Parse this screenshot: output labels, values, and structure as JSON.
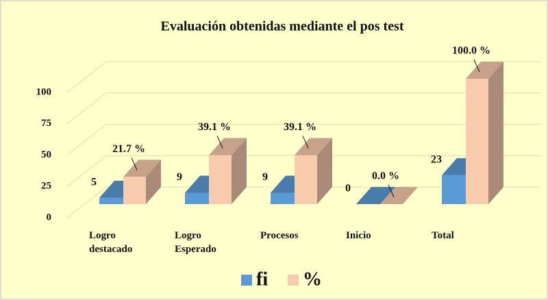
{
  "chart_data": {
    "type": "bar3d",
    "title": "Evaluación obtenidas mediante el pos  test",
    "categories": [
      "Logro destacado",
      "Logro Esperado",
      "Procesos",
      "Inicio",
      "Total"
    ],
    "series": [
      {
        "name": "fi",
        "color": "#5b9bd5",
        "values": [
          5,
          9,
          9,
          0,
          23
        ]
      },
      {
        "name": "%",
        "color": "#f8cbad",
        "values": [
          21.7,
          39.1,
          39.1,
          0.0,
          100.0
        ],
        "value_labels": [
          "21.7 %",
          "39.1 %",
          "39.1 %",
          "0.0 %",
          "100.0 %"
        ]
      }
    ],
    "ylim": [
      0,
      100
    ],
    "yticks": [
      0,
      25,
      50,
      75,
      100
    ],
    "grid": true,
    "legend": "bottom"
  }
}
